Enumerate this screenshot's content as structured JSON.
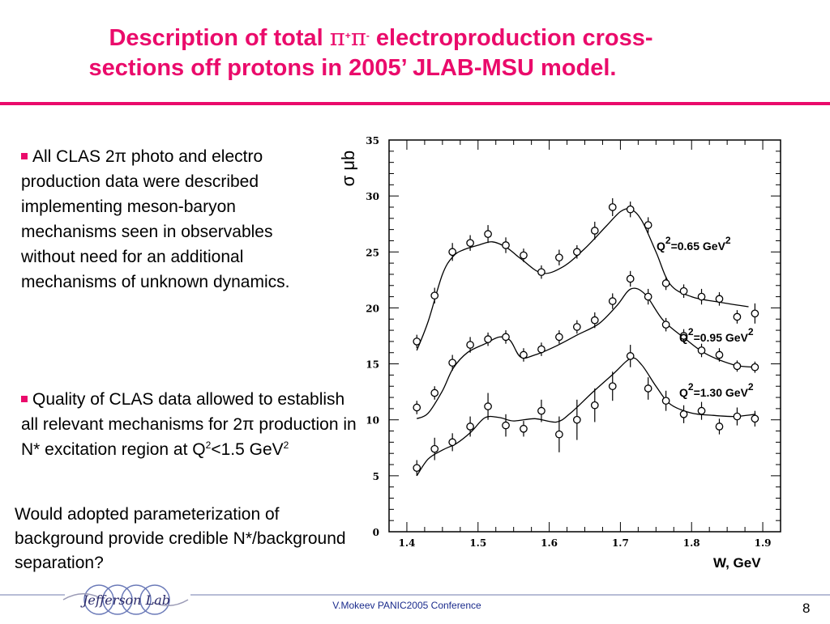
{
  "slide": {
    "title_line1_pre": "Description of total ",
    "title_pi": "π",
    "title_plus": "+",
    "title_pi2": "π",
    "title_minus": "-",
    "title_line1_post": " electroproduction cross-",
    "title_line2": "sections  off protons in 2005’ JLAB-MSU model.",
    "accent_color": "#ea0b6b"
  },
  "bullets": {
    "b1": "All CLAS 2π photo and electro production data were described implementing meson-baryon mechanisms seen in observables without need for an additional mechanisms of unknown dynamics.",
    "b2_pre": "Quality of CLAS data allowed to establish all relevant mechanisms for 2π production in N* excitation region at Q",
    "b2_sup": "2",
    "b2_mid": "<1.5 GeV",
    "b2_sup2": "2"
  },
  "question": "Would adopted parameterization of background provide credible N*/background separation?",
  "footer": {
    "conference": "V.Mokeev  PANIC2005 Conference",
    "page": "8",
    "logo_text": "Jefferson Lab"
  },
  "chart_data": {
    "type": "scatter",
    "xlabel": "W, GeV",
    "ylabel": "σ μb",
    "xlim": [
      1.375,
      1.925
    ],
    "ylim": [
      0,
      35
    ],
    "xticks": [
      "1.4",
      "1.5",
      "1.6",
      "1.7",
      "1.8",
      "1.9"
    ],
    "yticks": [
      "0",
      "5",
      "10",
      "15",
      "20",
      "25",
      "30",
      "35"
    ],
    "series": [
      {
        "name": "Q²=0.65 GeV²",
        "label_pre": "Q",
        "label_sup": "2",
        "label_mid": "=0.65 GeV",
        "label_sup2": "2",
        "x": [
          1.414,
          1.439,
          1.464,
          1.489,
          1.514,
          1.539,
          1.564,
          1.589,
          1.614,
          1.639,
          1.664,
          1.689,
          1.714,
          1.739,
          1.764,
          1.789,
          1.814,
          1.839,
          1.864,
          1.889
        ],
        "y": [
          17.0,
          21.1,
          25.0,
          25.8,
          26.6,
          25.6,
          24.7,
          23.2,
          24.5,
          25.0,
          26.9,
          29.0,
          28.8,
          27.4,
          22.2,
          21.5,
          21.0,
          20.8,
          19.2,
          19.5
        ],
        "err": [
          0.6,
          0.7,
          0.8,
          0.7,
          0.8,
          0.7,
          0.6,
          0.6,
          0.7,
          0.6,
          0.8,
          0.8,
          0.7,
          0.7,
          0.6,
          0.6,
          0.7,
          0.6,
          0.6,
          0.9
        ],
        "curve_x": [
          1.414,
          1.43,
          1.45,
          1.465,
          1.48,
          1.5,
          1.52,
          1.54,
          1.56,
          1.59,
          1.62,
          1.65,
          1.68,
          1.7,
          1.715,
          1.73,
          1.75,
          1.77,
          1.8,
          1.84,
          1.88
        ],
        "curve_y": [
          16.2,
          18.8,
          23.0,
          24.6,
          25.2,
          25.6,
          25.9,
          25.4,
          24.4,
          23.1,
          23.7,
          25.3,
          27.3,
          28.6,
          28.8,
          27.8,
          25.0,
          22.1,
          21.0,
          20.5,
          20.1
        ]
      },
      {
        "name": "Q²=0.95 GeV²",
        "label_pre": "Q",
        "label_sup": "2",
        "label_mid": "=0.95 GeV",
        "label_sup2": "2",
        "x": [
          1.414,
          1.439,
          1.464,
          1.489,
          1.514,
          1.539,
          1.564,
          1.589,
          1.614,
          1.639,
          1.664,
          1.689,
          1.714,
          1.739,
          1.764,
          1.789,
          1.814,
          1.839,
          1.864,
          1.889
        ],
        "y": [
          11.1,
          12.4,
          15.1,
          16.7,
          17.2,
          17.4,
          15.8,
          16.3,
          17.4,
          18.3,
          18.9,
          20.6,
          22.6,
          21.0,
          18.5,
          17.5,
          16.2,
          15.8,
          14.8,
          14.7
        ],
        "err": [
          0.6,
          0.6,
          0.7,
          0.7,
          0.6,
          0.6,
          0.6,
          0.6,
          0.6,
          0.6,
          0.7,
          0.7,
          0.7,
          0.7,
          0.6,
          0.6,
          0.6,
          0.6,
          0.5,
          0.5
        ],
        "curve_x": [
          1.414,
          1.43,
          1.45,
          1.465,
          1.485,
          1.51,
          1.53,
          1.545,
          1.56,
          1.58,
          1.61,
          1.64,
          1.67,
          1.695,
          1.715,
          1.735,
          1.76,
          1.79,
          1.82,
          1.86,
          1.89
        ],
        "curve_y": [
          10.1,
          10.6,
          12.6,
          14.6,
          16.0,
          16.8,
          17.4,
          17.1,
          15.6,
          15.8,
          16.6,
          17.6,
          18.6,
          20.2,
          21.7,
          21.2,
          18.9,
          17.3,
          15.9,
          14.9,
          14.7
        ]
      },
      {
        "name": "Q²=1.30 GeV²",
        "label_pre": "Q",
        "label_sup": "2",
        "label_mid": "=1.30 GeV",
        "label_sup2": "2",
        "x": [
          1.414,
          1.439,
          1.464,
          1.489,
          1.514,
          1.539,
          1.564,
          1.589,
          1.614,
          1.639,
          1.664,
          1.689,
          1.714,
          1.739,
          1.764,
          1.789,
          1.814,
          1.839,
          1.864,
          1.889
        ],
        "y": [
          5.7,
          7.4,
          8.0,
          9.4,
          11.2,
          9.5,
          9.2,
          10.8,
          8.7,
          10.0,
          11.3,
          13.0,
          15.7,
          12.8,
          11.7,
          10.5,
          10.8,
          9.4,
          10.3,
          10.1
        ],
        "err": [
          0.7,
          1.0,
          0.8,
          0.9,
          1.2,
          1.0,
          0.7,
          1.0,
          1.6,
          1.8,
          1.5,
          1.3,
          1.0,
          1.0,
          0.9,
          0.8,
          0.8,
          0.7,
          0.8,
          0.7
        ],
        "curve_x": [
          1.414,
          1.43,
          1.45,
          1.47,
          1.49,
          1.51,
          1.53,
          1.55,
          1.58,
          1.61,
          1.63,
          1.66,
          1.69,
          1.715,
          1.73,
          1.75,
          1.77,
          1.8,
          1.83,
          1.86,
          1.89
        ],
        "curve_y": [
          5.0,
          6.5,
          7.3,
          7.9,
          8.9,
          10.2,
          10.2,
          9.9,
          10.1,
          9.8,
          10.6,
          12.4,
          14.1,
          15.5,
          14.9,
          13.0,
          11.4,
          10.6,
          10.4,
          10.3,
          10.5
        ]
      }
    ]
  }
}
